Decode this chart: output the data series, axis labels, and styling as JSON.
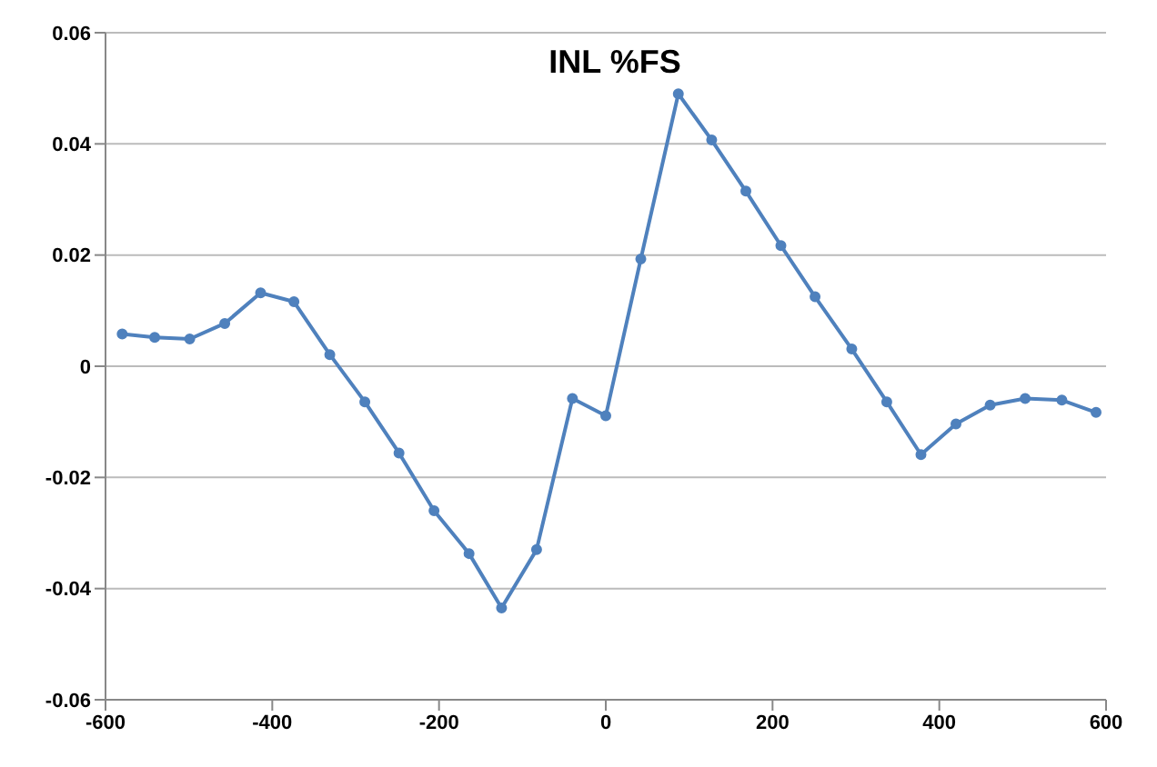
{
  "chart_data": {
    "type": "line",
    "title": "INL %FS",
    "x": [
      -580,
      -541,
      -499,
      -457,
      -414,
      -374,
      -331,
      -289,
      -248,
      -206,
      -164,
      -125,
      -83,
      -40,
      0,
      42,
      87,
      127,
      168,
      210,
      251,
      295,
      337,
      378,
      420,
      461,
      503,
      547,
      588
    ],
    "series": [
      {
        "color": "#4f81bd",
        "values": [
          0.0058,
          0.0052,
          0.0049,
          0.0077,
          0.0132,
          0.0116,
          0.0021,
          -0.0064,
          -0.0156,
          -0.026,
          -0.0337,
          -0.0435,
          -0.033,
          -0.0058,
          -0.0089,
          0.0193,
          0.049,
          0.0407,
          0.0315,
          0.0217,
          0.0125,
          0.0031,
          -0.0064,
          -0.0159,
          -0.0104,
          -0.007,
          -0.0058,
          -0.0061,
          -0.0083
        ]
      }
    ],
    "xlim": [
      -600,
      600
    ],
    "xticks": [
      -600,
      -400,
      -200,
      0,
      200,
      400,
      600
    ],
    "ylim": [
      -0.06,
      0.06
    ],
    "yticks": [
      -0.06,
      -0.04,
      -0.02,
      0,
      0.02,
      0.04,
      0.06
    ],
    "grid": "y",
    "marker": "circle",
    "line_style": "solid"
  }
}
